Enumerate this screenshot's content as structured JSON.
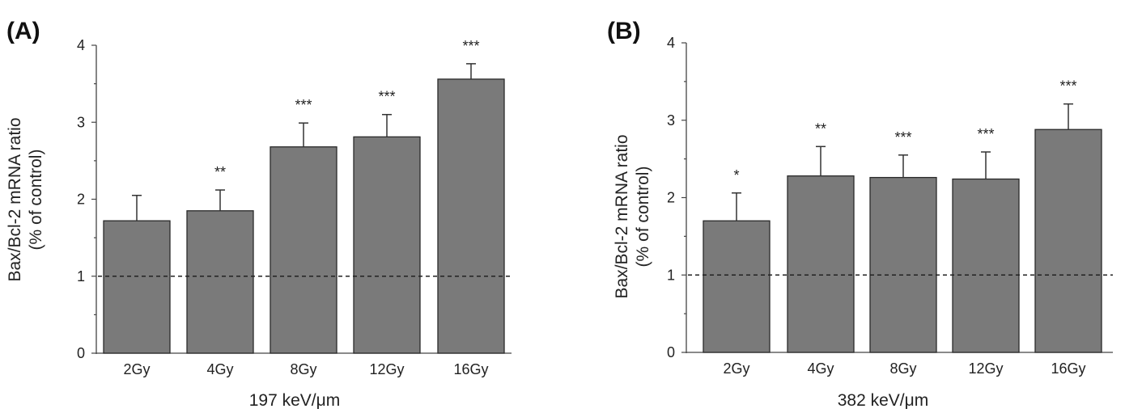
{
  "chart_data": [
    {
      "type": "bar",
      "panel_label": "(A)",
      "categories": [
        "2Gy",
        "4Gy",
        "8Gy",
        "12Gy",
        "16Gy"
      ],
      "values": [
        1.72,
        1.85,
        2.68,
        2.81,
        3.56
      ],
      "error_upper": [
        0.33,
        0.27,
        0.31,
        0.29,
        0.2
      ],
      "significance": [
        "",
        "**",
        "***",
        "***",
        "***"
      ],
      "xlabel": "197 keV/μm",
      "ylabel": "Bax/Bcl-2 mRNA ratio",
      "ylabel_line2": "(% of control)",
      "ylim": [
        0,
        4
      ],
      "yticks": [
        "0",
        "1",
        "2",
        "3",
        "4"
      ],
      "reference_line": 1,
      "bar_color": "#7a7a7a"
    },
    {
      "type": "bar",
      "panel_label": "(B)",
      "categories": [
        "2Gy",
        "4Gy",
        "8Gy",
        "12Gy",
        "16Gy"
      ],
      "values": [
        1.7,
        2.28,
        2.26,
        2.24,
        2.88
      ],
      "error_upper": [
        0.36,
        0.38,
        0.29,
        0.35,
        0.33
      ],
      "significance": [
        "*",
        "**",
        "***",
        "***",
        "***"
      ],
      "xlabel": "382 keV/μm",
      "ylabel": "Bax/Bcl-2 mRNA ratio",
      "ylabel_line2": "(% of control)",
      "ylim": [
        0,
        4
      ],
      "yticks": [
        "0",
        "1",
        "2",
        "3",
        "4"
      ],
      "reference_line": 1,
      "bar_color": "#7a7a7a"
    }
  ]
}
